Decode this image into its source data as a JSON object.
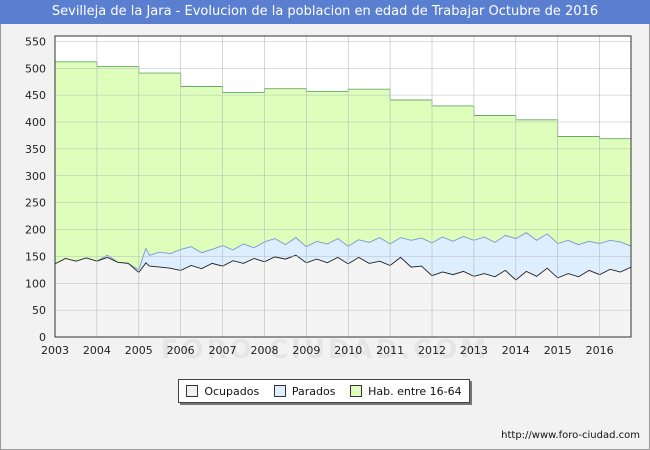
{
  "header": {
    "title": "Sevilleja de la Jara - Evolucion de la poblacion en edad de Trabajar Octubre de 2016"
  },
  "footer": {
    "source": "http://www.foro-ciudad.com"
  },
  "watermark": "FORO-CIUDAD.COM",
  "legend": [
    {
      "label": "Ocupados",
      "color": "#f0f0f0"
    },
    {
      "label": "Parados",
      "color": "#ddeeff"
    },
    {
      "label": "Hab. entre 16-64",
      "color": "#ddffbb"
    }
  ],
  "chart_data": {
    "type": "area",
    "title": "Sevilleja de la Jara - Evolucion de la poblacion en edad de Trabajar Octubre de 2016",
    "xlim": [
      2003,
      2016.75
    ],
    "ylim": [
      0,
      560
    ],
    "x_ticks": [
      "2003",
      "2004",
      "2005",
      "2006",
      "2007",
      "2008",
      "2009",
      "2010",
      "2011",
      "2012",
      "2013",
      "2014",
      "2015",
      "2016"
    ],
    "y_ticks": [
      0,
      50,
      100,
      150,
      200,
      250,
      300,
      350,
      400,
      450,
      500,
      550
    ],
    "grid": true,
    "legend_position": "bottom",
    "series": [
      {
        "name": "Hab. entre 16-64",
        "fill": "#ddffbb",
        "stroke": "#66aa66",
        "x": [
          2003,
          2004,
          2005,
          2006,
          2007,
          2008,
          2009,
          2010,
          2011,
          2012,
          2013,
          2014,
          2015,
          2016,
          2016.75
        ],
        "values": [
          512,
          503,
          491,
          466,
          455,
          462,
          457,
          461,
          441,
          430,
          412,
          404,
          373,
          369,
          369
        ],
        "step": true
      },
      {
        "name": "Parados",
        "fill": "#ddeeff",
        "stroke": "#7799cc",
        "x": [
          2003,
          2003.25,
          2003.5,
          2003.75,
          2004,
          2004.25,
          2004.5,
          2004.75,
          2005,
          2005.17,
          2005.25,
          2005.5,
          2005.75,
          2006,
          2006.25,
          2006.5,
          2006.75,
          2007,
          2007.25,
          2007.5,
          2007.75,
          2008,
          2008.25,
          2008.5,
          2008.75,
          2009,
          2009.25,
          2009.5,
          2009.75,
          2010,
          2010.25,
          2010.5,
          2010.75,
          2011,
          2011.25,
          2011.5,
          2011.75,
          2012,
          2012.25,
          2012.5,
          2012.75,
          2013,
          2013.25,
          2013.5,
          2013.75,
          2014,
          2014.25,
          2014.5,
          2014.75,
          2015,
          2015.25,
          2015.5,
          2015.75,
          2016,
          2016.25,
          2016.5,
          2016.75
        ],
        "values": [
          136,
          146,
          141,
          147,
          141,
          152,
          139,
          137,
          125,
          165,
          152,
          158,
          155,
          163,
          168,
          157,
          163,
          170,
          162,
          173,
          166,
          177,
          183,
          172,
          185,
          168,
          178,
          173,
          183,
          169,
          181,
          176,
          185,
          173,
          185,
          180,
          184,
          175,
          186,
          178,
          187,
          180,
          186,
          176,
          189,
          183,
          194,
          180,
          192,
          174,
          180,
          172,
          178,
          174,
          180,
          177,
          169
        ]
      },
      {
        "name": "Ocupados",
        "fill": "#f4f4f4",
        "stroke": "#222222",
        "x": [
          2003,
          2003.25,
          2003.5,
          2003.75,
          2004,
          2004.25,
          2004.5,
          2004.75,
          2005,
          2005.17,
          2005.25,
          2005.5,
          2005.75,
          2006,
          2006.25,
          2006.5,
          2006.75,
          2007,
          2007.25,
          2007.5,
          2007.75,
          2008,
          2008.25,
          2008.5,
          2008.75,
          2009,
          2009.25,
          2009.5,
          2009.75,
          2010,
          2010.25,
          2010.5,
          2010.75,
          2011,
          2011.25,
          2011.5,
          2011.75,
          2012,
          2012.25,
          2012.5,
          2012.75,
          2013,
          2013.25,
          2013.5,
          2013.75,
          2014,
          2014.25,
          2014.5,
          2014.75,
          2015,
          2015.25,
          2015.5,
          2015.75,
          2016,
          2016.25,
          2016.5,
          2016.75
        ],
        "values": [
          136,
          146,
          141,
          147,
          141,
          148,
          139,
          137,
          120,
          138,
          132,
          130,
          128,
          124,
          133,
          127,
          137,
          132,
          142,
          137,
          146,
          140,
          149,
          145,
          152,
          138,
          145,
          138,
          148,
          136,
          148,
          137,
          141,
          133,
          148,
          130,
          132,
          114,
          121,
          116,
          122,
          113,
          118,
          112,
          124,
          106,
          122,
          113,
          128,
          110,
          118,
          112,
          124,
          116,
          126,
          121,
          130
        ]
      }
    ]
  }
}
